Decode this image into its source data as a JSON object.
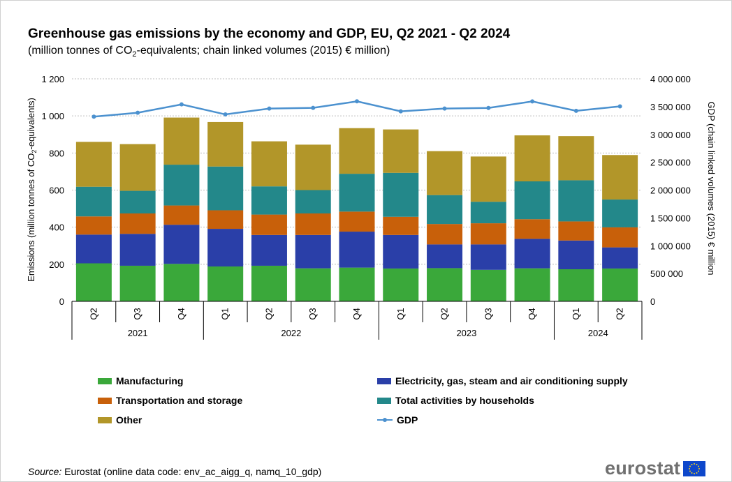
{
  "title": "Greenhouse gas emissions by the economy and GDP, EU, Q2 2021 - Q2 2024",
  "subtitle_pre": "(million tonnes of CO",
  "subtitle_sub": "2",
  "subtitle_post": "-equivalents; chain linked volumes (2015) € million)",
  "source_label": "Source:",
  "source_text": "Eurostat (online data code: env_ac_aigg_q, namq_10_gdp)",
  "logo_text": "eurostat",
  "chart_data": {
    "type": "bar",
    "stacked": true,
    "categories": [
      "Q2",
      "Q3",
      "Q4",
      "Q1",
      "Q2",
      "Q3",
      "Q4",
      "Q1",
      "Q2",
      "Q3",
      "Q4",
      "Q1",
      "Q2"
    ],
    "year_groups": [
      {
        "label": "2021",
        "count": 3
      },
      {
        "label": "2022",
        "count": 4
      },
      {
        "label": "2023",
        "count": 4
      },
      {
        "label": "2024",
        "count": 2
      }
    ],
    "series": [
      {
        "name": "Manufacturing",
        "color": "#3aa83a",
        "values": [
          205,
          192,
          202,
          188,
          192,
          178,
          182,
          177,
          179,
          170,
          178,
          173,
          177
        ]
      },
      {
        "name": "Electricity, gas, steam and air conditioning supply",
        "color": "#2a3fa8",
        "values": [
          155,
          172,
          211,
          203,
          166,
          180,
          194,
          181,
          128,
          137,
          159,
          155,
          114
        ]
      },
      {
        "name": "Transportation and storage",
        "color": "#c8600a",
        "values": [
          98,
          110,
          104,
          100,
          110,
          116,
          108,
          98,
          110,
          114,
          106,
          103,
          108
        ]
      },
      {
        "name": "Total activities by households",
        "color": "#23888a",
        "values": [
          160,
          122,
          220,
          236,
          152,
          126,
          204,
          237,
          156,
          116,
          204,
          222,
          150
        ]
      },
      {
        "name": "Other",
        "color": "#b29629",
        "values": [
          242,
          252,
          254,
          240,
          243,
          245,
          246,
          234,
          237,
          244,
          248,
          238,
          240
        ]
      }
    ],
    "line_series": {
      "name": "GDP",
      "color": "#4b91cf",
      "axis": "right",
      "values": [
        3320000,
        3390000,
        3540000,
        3360000,
        3465000,
        3478000,
        3595000,
        3415000,
        3466000,
        3477000,
        3594000,
        3425000,
        3505000
      ]
    },
    "ylabel": "Emissions (million tonnes of CO₂-equivalents)",
    "ylabel_pre": "Emissions (million tonnes of CO",
    "ylabel_sub": "2",
    "ylabel_post": "-equivalents)",
    "y2label": "GDP (chain linked volumes (2015) € million",
    "ylim": [
      0,
      1200
    ],
    "y2lim": [
      0,
      4000000
    ],
    "yticks": [
      "0",
      "200",
      "400",
      "600",
      "800",
      "1 000",
      "1 200"
    ],
    "y2ticks": [
      "0",
      "500 000",
      "1 000 000",
      "1 500 000",
      "2 000 000",
      "2 500 000",
      "3 000 000",
      "3 500 000",
      "4 000 000"
    ],
    "grid": true,
    "legend_position": "bottom"
  },
  "colors": {
    "grid": "#bdbdbd",
    "axis_text": "#000000"
  }
}
